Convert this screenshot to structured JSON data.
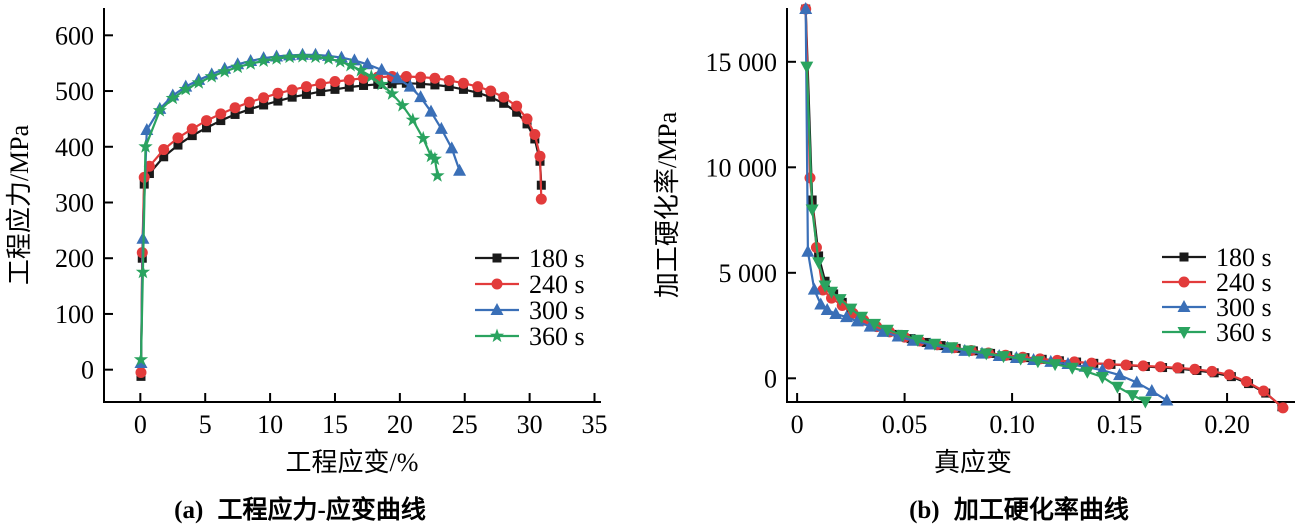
{
  "figure": {
    "background": "#ffffff",
    "series_colors": {
      "180 s": "#1a1a1a",
      "240 s": "#e23b3b",
      "300 s": "#3a6fb7",
      "360 s": "#2aa35f"
    }
  },
  "chart_data": [
    {
      "id": "a",
      "type": "line",
      "caption_prefix": "(a)",
      "caption": "工程应力-应变曲线",
      "xlabel": "工程应变/%",
      "ylabel": "工程应力/MPa",
      "xlim": [
        -2.8,
        35.5
      ],
      "ylim": [
        -58,
        649
      ],
      "xticks": [
        0,
        5,
        10,
        15,
        20,
        25,
        30,
        35
      ],
      "xtick_labels": [
        "0",
        "5",
        "10",
        "15",
        "20",
        "25",
        "30",
        "35"
      ],
      "yticks": [
        0,
        100,
        200,
        300,
        400,
        500,
        600
      ],
      "ytick_labels": [
        "0",
        "100",
        "200",
        "300",
        "400",
        "500",
        "600"
      ],
      "grid": false,
      "legend_position": "inside-right-lower",
      "series": [
        {
          "name": "180 s",
          "color": "#1a1a1a",
          "marker": "square",
          "x": [
            0.05,
            0.15,
            0.3,
            0.7,
            1.8,
            2.9,
            4.0,
            5.1,
            6.2,
            7.3,
            8.4,
            9.5,
            10.6,
            11.7,
            12.8,
            13.9,
            15.0,
            16.1,
            17.2,
            18.3,
            19.4,
            20.5,
            21.6,
            22.7,
            23.8,
            24.9,
            26.0,
            27.0,
            28.0,
            29.0,
            29.8,
            30.4,
            30.8,
            30.9
          ],
          "y": [
            -12,
            200,
            333,
            352,
            382,
            403,
            420,
            434,
            447,
            458,
            467,
            475,
            482,
            489,
            494,
            499,
            503,
            507,
            510,
            512,
            513,
            514,
            513,
            511,
            508,
            503,
            497,
            489,
            478,
            462,
            441,
            414,
            374,
            331
          ]
        },
        {
          "name": "240 s",
          "color": "#e23b3b",
          "marker": "circle",
          "x": [
            0.05,
            0.15,
            0.3,
            0.7,
            1.8,
            2.9,
            4.0,
            5.1,
            6.2,
            7.3,
            8.4,
            9.5,
            10.6,
            11.7,
            12.8,
            13.9,
            15.0,
            16.1,
            17.2,
            18.3,
            19.4,
            20.5,
            21.6,
            22.7,
            23.8,
            24.9,
            26.0,
            27.0,
            28.0,
            29.0,
            29.8,
            30.4,
            30.8,
            30.9
          ],
          "y": [
            -5,
            210,
            345,
            365,
            395,
            416,
            432,
            447,
            459,
            470,
            480,
            488,
            496,
            502,
            508,
            513,
            517,
            520,
            523,
            525,
            526,
            526,
            525,
            523,
            519,
            514,
            508,
            500,
            489,
            473,
            450,
            422,
            383,
            306
          ]
        },
        {
          "name": "300 s",
          "color": "#3a6fb7",
          "marker": "triangle-up",
          "x": [
            0.05,
            0.2,
            0.5,
            1.5,
            2.5,
            3.5,
            4.5,
            5.5,
            6.5,
            7.5,
            8.5,
            9.5,
            10.5,
            11.5,
            12.5,
            13.5,
            14.5,
            15.5,
            16.5,
            17.5,
            18.6,
            19.8,
            20.8,
            21.6,
            22.4,
            23.2,
            24.0,
            24.6
          ],
          "y": [
            12,
            235,
            430,
            468,
            492,
            508,
            520,
            530,
            540,
            548,
            554,
            559,
            562,
            564,
            565,
            565,
            563,
            560,
            555,
            548,
            538,
            523,
            508,
            489,
            463,
            432,
            397,
            357
          ]
        },
        {
          "name": "360 s",
          "color": "#2aa35f",
          "marker": "star",
          "x": [
            0.05,
            0.2,
            0.4,
            1.5,
            2.5,
            3.5,
            4.5,
            5.5,
            6.5,
            7.5,
            8.5,
            9.5,
            10.5,
            11.5,
            12.5,
            13.5,
            14.5,
            15.4,
            16.2,
            17.0,
            17.8,
            18.6,
            19.4,
            20.2,
            21.0,
            21.8,
            22.4,
            22.7,
            22.9
          ],
          "y": [
            18,
            175,
            400,
            465,
            487,
            503,
            515,
            526,
            535,
            543,
            549,
            554,
            558,
            561,
            562,
            561,
            558,
            553,
            546,
            537,
            526,
            512,
            495,
            474,
            448,
            415,
            383,
            378,
            348
          ]
        }
      ]
    },
    {
      "id": "b",
      "type": "line",
      "caption_prefix": "(b)",
      "caption": "加工硬化率曲线",
      "xlabel": "真应变",
      "ylabel": "加工硬化率/MPa",
      "xlim": [
        -0.0047,
        0.2316
      ],
      "ylim": [
        -1123,
        17550
      ],
      "xticks": [
        0,
        0.05,
        0.1,
        0.15,
        0.2
      ],
      "xtick_labels": [
        "0",
        "0.05",
        "0.10",
        "0.15",
        "0.20"
      ],
      "yticks": [
        0,
        5000,
        10000,
        15000
      ],
      "ytick_labels": [
        "0",
        "5 000",
        "10 000",
        "15 000"
      ],
      "grid": false,
      "legend_position": "inside-right-lower",
      "series": [
        {
          "name": "180 s",
          "color": "#1a1a1a",
          "marker": "square",
          "x": [
            0.004,
            0.007,
            0.01,
            0.013,
            0.017,
            0.021,
            0.025,
            0.03,
            0.035,
            0.041,
            0.047,
            0.053,
            0.06,
            0.067,
            0.074,
            0.082,
            0.09,
            0.098,
            0.106,
            0.114,
            0.122,
            0.13,
            0.138,
            0.146,
            0.154,
            0.162,
            0.17,
            0.178,
            0.186,
            0.194,
            0.202,
            0.21,
            0.218,
            0.2255
          ],
          "y": [
            17500,
            8450,
            5800,
            4600,
            4000,
            3600,
            3240,
            2850,
            2550,
            2300,
            2080,
            1880,
            1700,
            1550,
            1420,
            1300,
            1180,
            1070,
            980,
            900,
            830,
            770,
            710,
            660,
            610,
            560,
            510,
            450,
            370,
            260,
            80,
            -250,
            -700,
            -1350
          ]
        },
        {
          "name": "240 s",
          "color": "#e23b3b",
          "marker": "circle",
          "x": [
            0.004,
            0.006,
            0.009,
            0.012,
            0.016,
            0.021,
            0.026,
            0.031,
            0.037,
            0.043,
            0.05,
            0.057,
            0.065,
            0.073,
            0.081,
            0.089,
            0.097,
            0.105,
            0.113,
            0.121,
            0.129,
            0.137,
            0.145,
            0.153,
            0.161,
            0.169,
            0.177,
            0.185,
            0.193,
            0.201,
            0.209,
            0.217,
            0.226
          ],
          "y": [
            17500,
            9500,
            6200,
            4185,
            3800,
            3450,
            3080,
            2750,
            2450,
            2200,
            1950,
            1770,
            1590,
            1450,
            1320,
            1200,
            1090,
            1000,
            920,
            850,
            780,
            720,
            670,
            630,
            590,
            550,
            500,
            430,
            330,
            170,
            -150,
            -600,
            -1400
          ]
        },
        {
          "name": "300 s",
          "color": "#3a6fb7",
          "marker": "triangle-up",
          "x": [
            0.004,
            0.005,
            0.008,
            0.011,
            0.014,
            0.018,
            0.023,
            0.028,
            0.034,
            0.04,
            0.047,
            0.054,
            0.062,
            0.07,
            0.078,
            0.086,
            0.094,
            0.102,
            0.11,
            0.118,
            0.126,
            0.134,
            0.142,
            0.15,
            0.158,
            0.165,
            0.172
          ],
          "y": [
            17500,
            6000,
            4200,
            3500,
            3240,
            3050,
            2900,
            2700,
            2450,
            2200,
            1980,
            1780,
            1600,
            1440,
            1300,
            1170,
            1060,
            960,
            870,
            780,
            680,
            550,
            380,
            150,
            -200,
            -600,
            -1050
          ]
        },
        {
          "name": "360 s",
          "color": "#2aa35f",
          "marker": "triangle-down",
          "x": [
            0.0045,
            0.007,
            0.01,
            0.013,
            0.016,
            0.02,
            0.025,
            0.03,
            0.036,
            0.042,
            0.049,
            0.056,
            0.064,
            0.072,
            0.08,
            0.088,
            0.096,
            0.104,
            0.112,
            0.12,
            0.128,
            0.135,
            0.142,
            0.149,
            0.156,
            0.162
          ],
          "y": [
            14770,
            8000,
            5500,
            4400,
            4100,
            3750,
            3300,
            2920,
            2580,
            2300,
            2050,
            1830,
            1640,
            1470,
            1320,
            1180,
            1050,
            930,
            810,
            670,
            500,
            310,
            60,
            -400,
            -800,
            -1100
          ]
        }
      ]
    }
  ]
}
